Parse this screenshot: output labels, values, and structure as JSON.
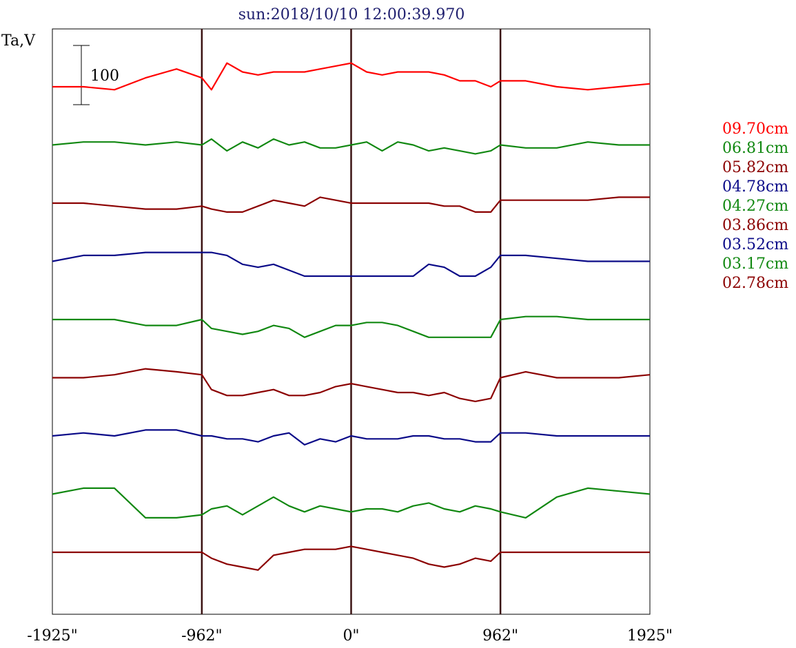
{
  "chart_data": {
    "type": "line",
    "title": "sun:2018/10/10 12:00:39.970",
    "ylabel": "Ta,V",
    "xlabel": "",
    "x_ticks": [
      "-1925\"",
      "-962\"",
      "0\"",
      "962\"",
      "1925\""
    ],
    "x_tick_values": [
      -1925,
      -962,
      0,
      962,
      1925
    ],
    "xlim": [
      -1925,
      1925
    ],
    "vertical_markers": [
      -962,
      0,
      962
    ],
    "scale_bar": {
      "label": "100",
      "value": 100
    },
    "grid": false,
    "legend_position": "right",
    "x": [
      -1925,
      -1725,
      -1525,
      -1325,
      -1125,
      -962,
      -900,
      -800,
      -700,
      -600,
      -500,
      -400,
      -300,
      -200,
      -100,
      0,
      100,
      200,
      300,
      400,
      500,
      600,
      700,
      800,
      900,
      962,
      1125,
      1325,
      1525,
      1725,
      1925
    ],
    "series": [
      {
        "name": "09.70cm",
        "color": "#ff0000",
        "values": [
          0,
          0,
          -5,
          15,
          30,
          15,
          -5,
          40,
          25,
          20,
          25,
          25,
          25,
          30,
          35,
          40,
          25,
          20,
          25,
          25,
          25,
          20,
          10,
          10,
          0,
          10,
          10,
          0,
          -5,
          0,
          5
        ]
      },
      {
        "name": "06.81cm",
        "color": "#118811",
        "values": [
          0,
          5,
          5,
          0,
          5,
          0,
          10,
          -10,
          5,
          -5,
          10,
          0,
          5,
          -5,
          -5,
          0,
          5,
          -10,
          5,
          0,
          -10,
          -5,
          -10,
          -15,
          -10,
          0,
          -5,
          -5,
          5,
          0,
          0
        ]
      },
      {
        "name": "05.82cm",
        "color": "#8b0000",
        "values": [
          0,
          0,
          -5,
          -10,
          -10,
          -5,
          -10,
          -15,
          -15,
          -5,
          5,
          0,
          -5,
          10,
          5,
          0,
          0,
          0,
          0,
          0,
          0,
          -5,
          -5,
          -15,
          -15,
          5,
          5,
          5,
          5,
          10,
          10
        ]
      },
      {
        "name": "04.78cm",
        "color": "#0a0a88",
        "values": [
          0,
          10,
          10,
          15,
          15,
          15,
          15,
          10,
          -5,
          -10,
          -5,
          -15,
          -25,
          -25,
          -25,
          -25,
          -25,
          -25,
          -25,
          -25,
          -5,
          -10,
          -25,
          -25,
          -10,
          10,
          10,
          5,
          0,
          0,
          0
        ]
      },
      {
        "name": "04.27cm",
        "color": "#118811",
        "values": [
          0,
          0,
          0,
          -10,
          -10,
          0,
          -15,
          -20,
          -25,
          -20,
          -10,
          -15,
          -30,
          -20,
          -10,
          -10,
          -5,
          -5,
          -10,
          -20,
          -30,
          -30,
          -30,
          -30,
          -30,
          0,
          5,
          5,
          0,
          0,
          0
        ]
      },
      {
        "name": "03.86cm",
        "color": "#8b0000",
        "values": [
          0,
          0,
          5,
          15,
          10,
          5,
          -20,
          -30,
          -30,
          -25,
          -20,
          -30,
          -30,
          -25,
          -15,
          -10,
          -15,
          -20,
          -25,
          -25,
          -30,
          -25,
          -35,
          -40,
          -35,
          0,
          10,
          0,
          0,
          0,
          5
        ]
      },
      {
        "name": "03.52cm",
        "color": "#0a0a88",
        "values": [
          0,
          5,
          0,
          10,
          10,
          0,
          0,
          -5,
          -5,
          -10,
          0,
          5,
          -15,
          -5,
          -10,
          0,
          -5,
          -5,
          -5,
          0,
          0,
          -5,
          -5,
          -10,
          -10,
          5,
          5,
          0,
          0,
          0,
          0
        ]
      },
      {
        "name": "03.17cm",
        "color": "#118811",
        "values": [
          0,
          10,
          10,
          -40,
          -40,
          -35,
          -25,
          -20,
          -35,
          -20,
          -5,
          -20,
          -30,
          -20,
          -25,
          -30,
          -25,
          -25,
          -30,
          -20,
          -15,
          -25,
          -30,
          -20,
          -25,
          -30,
          -40,
          -5,
          10,
          5,
          0
        ]
      },
      {
        "name": "02.78cm",
        "color": "#8b0000",
        "values": [
          0,
          0,
          0,
          0,
          0,
          0,
          -10,
          -20,
          -25,
          -30,
          -5,
          0,
          5,
          5,
          5,
          10,
          5,
          0,
          -5,
          -10,
          -20,
          -25,
          -20,
          -10,
          -15,
          0,
          0,
          0,
          0,
          0,
          0
        ]
      }
    ]
  }
}
